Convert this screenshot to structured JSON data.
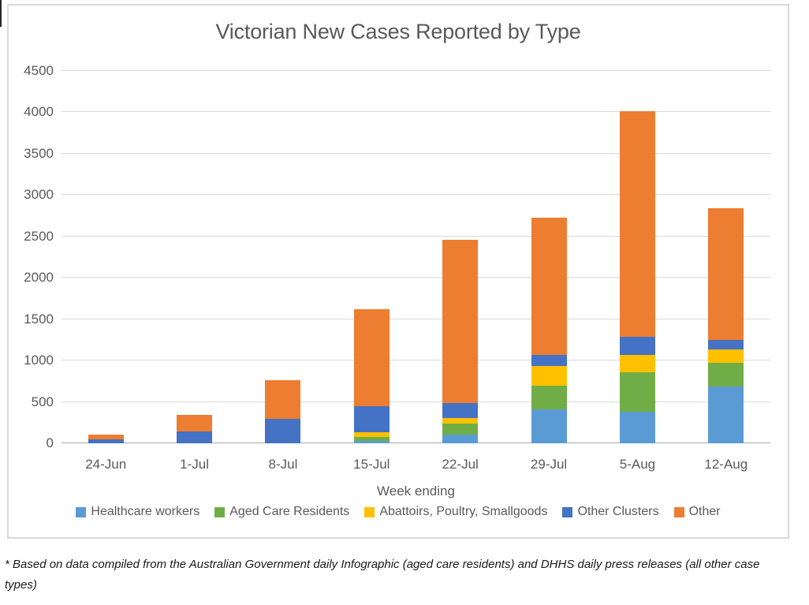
{
  "chart_data": {
    "type": "bar",
    "stacked": true,
    "title": "Victorian New Cases Reported by Type",
    "xlabel": "Week ending",
    "ylabel": "",
    "categories": [
      "24-Jun",
      "1-Jul",
      "8-Jul",
      "15-Jul",
      "22-Jul",
      "29-Jul",
      "5-Aug",
      "12-Aug"
    ],
    "series": [
      {
        "name": "Healthcare workers",
        "color": "#5B9BD5",
        "values": [
          0,
          0,
          0,
          25,
          105,
          410,
          385,
          690
        ]
      },
      {
        "name": "Aged Care Residents",
        "color": "#70AD47",
        "values": [
          0,
          0,
          0,
          55,
          135,
          290,
          475,
          280
        ]
      },
      {
        "name": "Abattoirs, Poultry, Smallgoods",
        "color": "#FFC000",
        "values": [
          0,
          0,
          0,
          55,
          70,
          235,
          210,
          165
        ]
      },
      {
        "name": "Other Clusters",
        "color": "#4472C4",
        "values": [
          50,
          145,
          300,
          310,
          180,
          135,
          220,
          115
        ]
      },
      {
        "name": "Other",
        "color": "#ED7D31",
        "values": [
          55,
          195,
          460,
          1175,
          1970,
          1660,
          2720,
          1590
        ]
      }
    ],
    "totals": [
      105,
      340,
      760,
      1620,
      2460,
      2730,
      4010,
      2840
    ],
    "ylim": [
      0,
      4500
    ],
    "ytick_interval": 500,
    "yticks": [
      "0",
      "500",
      "1000",
      "1500",
      "2000",
      "2500",
      "3000",
      "3500",
      "4000",
      "4500"
    ],
    "grid": true,
    "legend_position": "bottom",
    "colors": {
      "text": "#595959",
      "gridline": "#D9D9D9",
      "axis_line": "#ABABAB",
      "frame_border": "#D9D9D9"
    }
  },
  "footnote": "* Based on data compiled from the Australian Government daily Infographic (aged care residents) and DHHS daily press releases (all other case types)"
}
